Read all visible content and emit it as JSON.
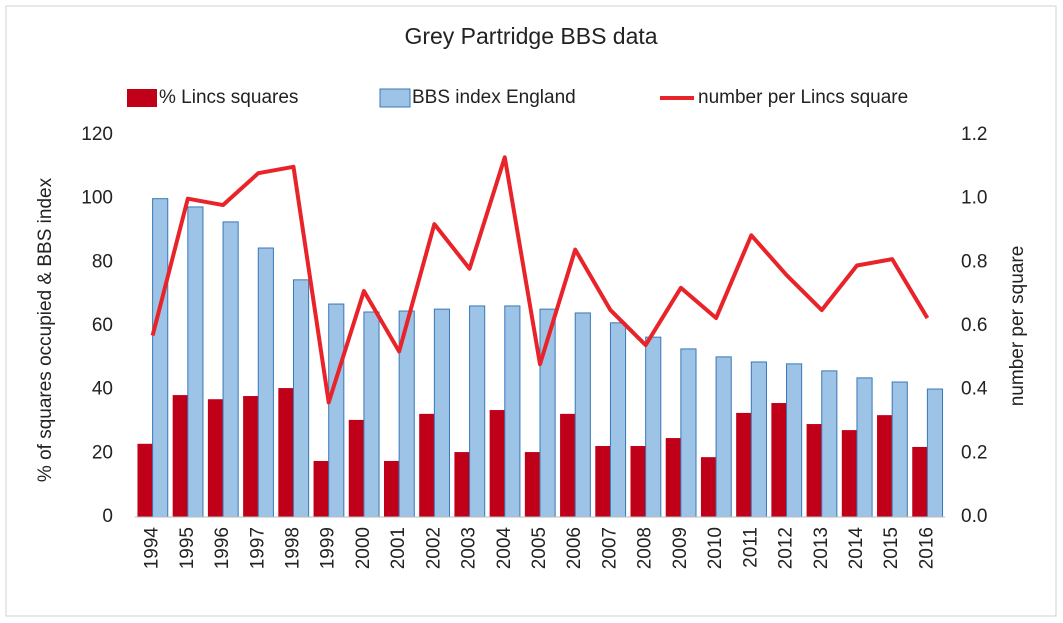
{
  "chart_data": {
    "type": "bar-line",
    "title": "Grey Partridge BBS data",
    "y_label": "% of squares occupied & BBS index",
    "y2_label": "number per square",
    "categories": [
      "1994",
      "1995",
      "1996",
      "1997",
      "1998",
      "1999",
      "2000",
      "2001",
      "2002",
      "2003",
      "2004",
      "2005",
      "2006",
      "2007",
      "2008",
      "2009",
      "2010",
      "2011",
      "2012",
      "2013",
      "2014",
      "2015",
      "2016"
    ],
    "series": [
      {
        "name": "% Lincs squares",
        "type": "bar",
        "color": "#c00018",
        "values": [
          23,
          38.3,
          37,
          38,
          40.5,
          17.6,
          30.5,
          17.6,
          32.4,
          20.4,
          33.6,
          20.4,
          32.4,
          22.3,
          22.3,
          24.8,
          18.8,
          32.7,
          35.8,
          29.2,
          27.3,
          32,
          22
        ]
      },
      {
        "name": "BBS index England",
        "type": "bar",
        "color": "#9dc3e6",
        "values": [
          100,
          97.4,
          92.7,
          84.5,
          74.5,
          66.9,
          64.4,
          64.7,
          65.3,
          66.3,
          66.3,
          65.3,
          64.1,
          61,
          56.5,
          52.8,
          50.3,
          48.7,
          48.1,
          45.9,
          43.7,
          42.4,
          40.2
        ]
      },
      {
        "name": "number per Lincs square",
        "type": "line",
        "axis": "y2",
        "color": "#e8242a",
        "values": [
          0.57,
          1.0,
          0.98,
          1.08,
          1.1,
          0.36,
          0.71,
          0.52,
          0.92,
          0.78,
          1.13,
          0.48,
          0.84,
          0.65,
          0.54,
          0.72,
          0.625,
          0.885,
          0.76,
          0.65,
          0.79,
          0.81,
          0.625
        ]
      }
    ],
    "ylim": [
      0,
      120
    ],
    "yticks": [
      0,
      20,
      40,
      60,
      80,
      100,
      120
    ],
    "y2lim": [
      0,
      1.2
    ],
    "y2ticks": [
      {
        "value": 0,
        "label": "0.0"
      },
      0.2,
      0.4,
      0.6,
      0.8,
      {
        "value": 1,
        "label": "1.0"
      },
      1.2
    ],
    "grid": false,
    "legend": "top"
  }
}
